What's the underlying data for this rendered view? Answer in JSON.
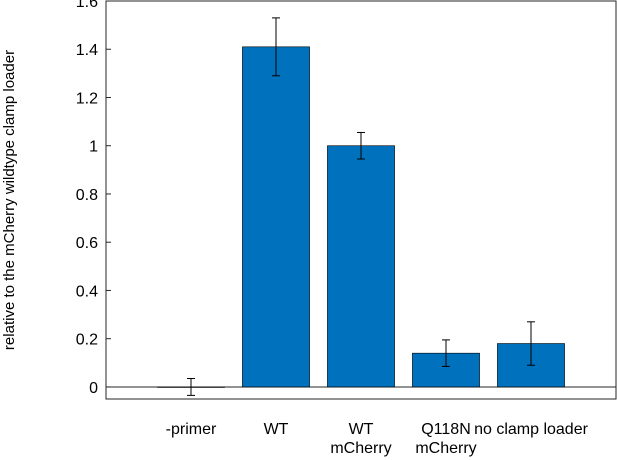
{
  "chart_data": {
    "type": "bar",
    "title": "",
    "xlabel": "",
    "ylabel": "relative to the mCherry wildtype clamp loader",
    "ylim": [
      -0.05,
      1.6
    ],
    "yticks": [
      0,
      0.2,
      0.4,
      0.6,
      0.8,
      1,
      1.2,
      1.4,
      1.6
    ],
    "ytick_labels": [
      "0",
      "0.2",
      "0.4",
      "0.6",
      "0.8",
      "1",
      "1.2",
      "1.4",
      "1.6"
    ],
    "categories": [
      [
        "-primer"
      ],
      [
        "WT"
      ],
      [
        "WT",
        "mCherry"
      ],
      [
        "Q118N",
        "mCherry"
      ],
      [
        "no clamp loader"
      ]
    ],
    "values": [
      0.0,
      1.41,
      1.0,
      0.14,
      0.18
    ],
    "errors": [
      0.035,
      0.12,
      0.055,
      0.055,
      0.09
    ],
    "bar_color": "#0072BD",
    "bar_edge_color": "#000000",
    "zero_line": true,
    "grid": false
  }
}
